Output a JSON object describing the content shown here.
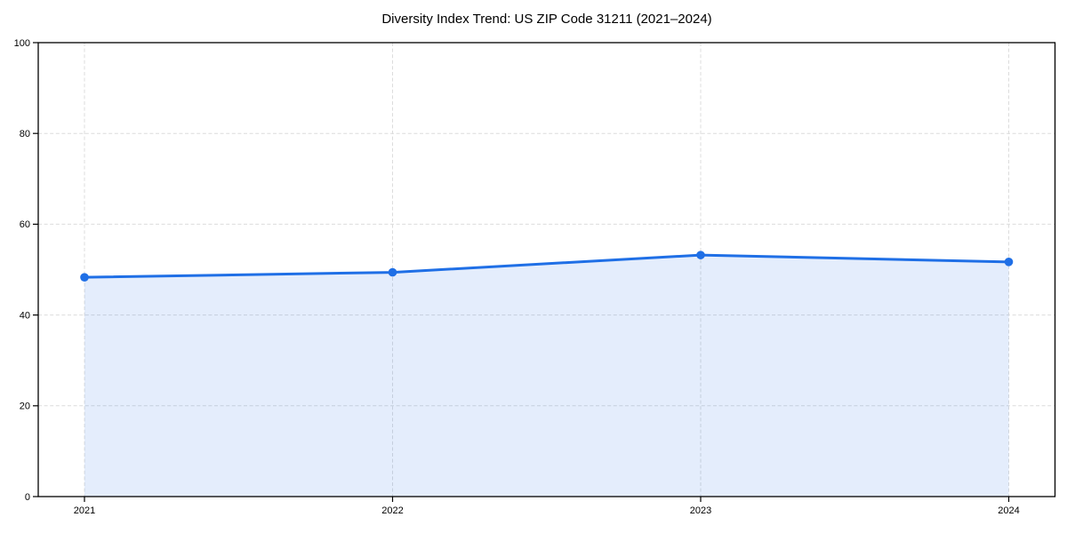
{
  "page": {
    "background": "#ffffff"
  },
  "chart_data": {
    "type": "area",
    "title": "Diversity Index Trend: US ZIP Code 31211 (2021–2024)",
    "x": [
      2021,
      2022,
      2023,
      2024
    ],
    "xtick_labels": [
      "2021",
      "2022",
      "2023",
      "2024"
    ],
    "values": [
      48.3,
      49.4,
      53.2,
      51.7
    ],
    "xlabel": "",
    "ylabel": "",
    "ylim": [
      0,
      100
    ],
    "yticks": [
      0,
      20,
      40,
      60,
      80,
      100
    ],
    "grid": true,
    "grid_style": "dashed",
    "legend": "none",
    "fill_opacity": 0.12,
    "marker": "circle",
    "colors": {
      "line": "#1f6fe6",
      "fill": "#1f6fe6",
      "grid": "#dcdcdc",
      "spine": "#000000",
      "text": "#000000",
      "title": "#000000"
    }
  }
}
